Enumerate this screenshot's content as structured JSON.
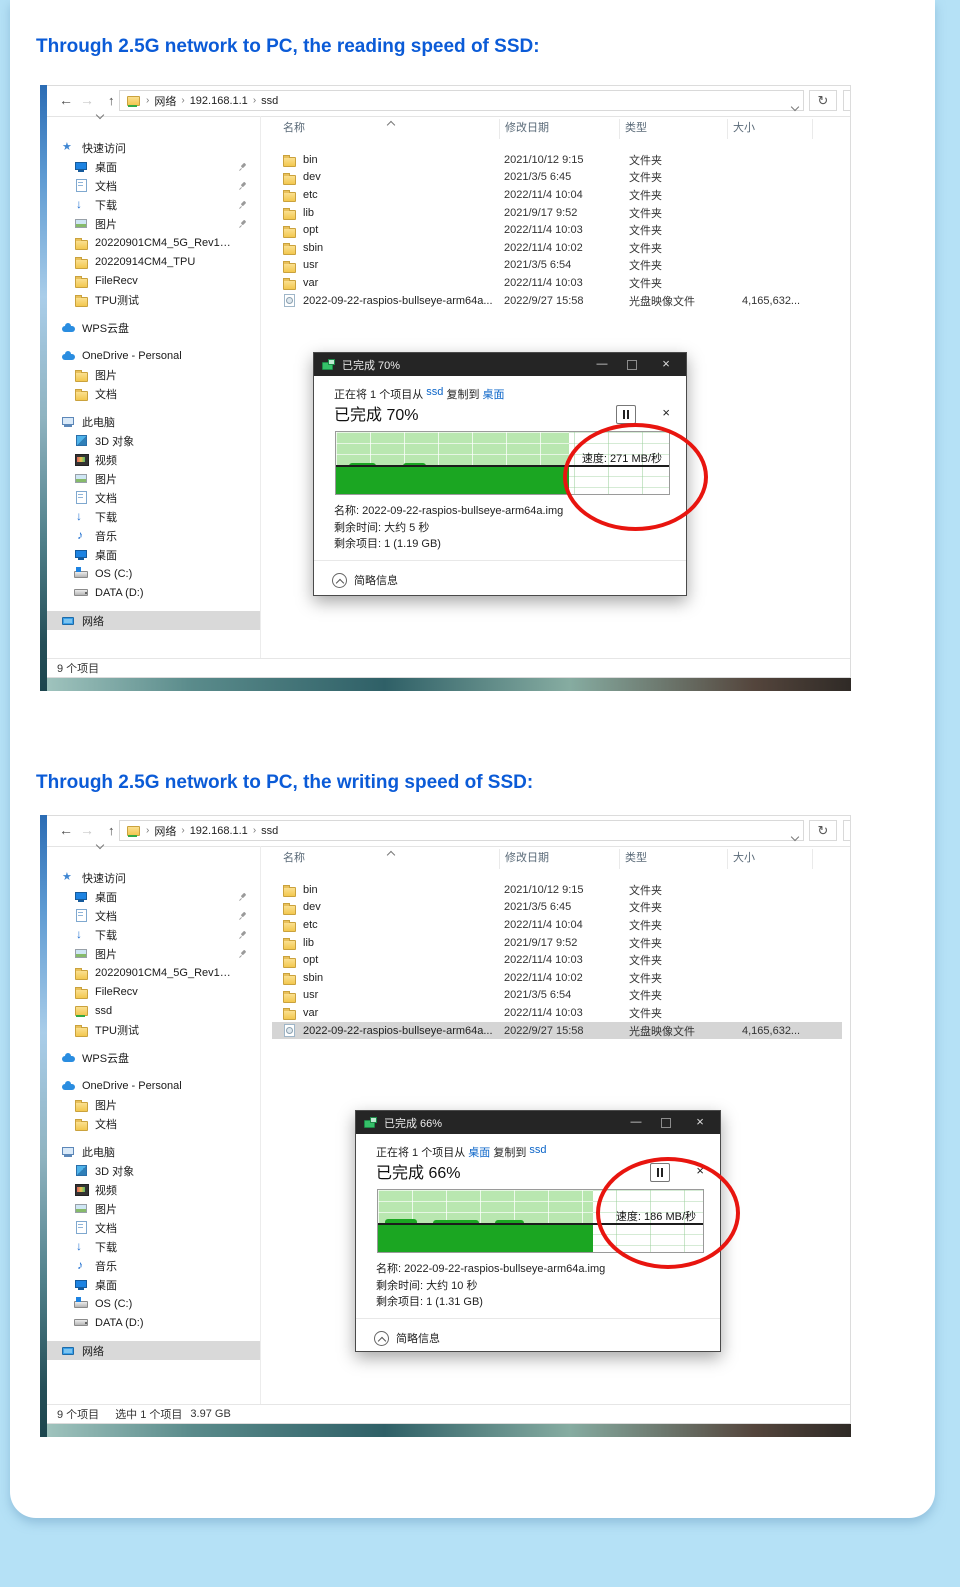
{
  "page": {
    "heading_reading": "Through 2.5G network to PC, the reading speed of SSD:",
    "heading_writing": "Through 2.5G network to PC, the writing speed of SSD:",
    "colors": {
      "background": "#b5e1f6",
      "heading": "#0b5bd7",
      "dialog_titlebar": "#252525",
      "chart_light_green": "#b9e7b0",
      "chart_dark_green": "#1ba622",
      "red_circle": "#e8150f",
      "link_blue": "#0a64c8",
      "selection_gray": "#d5d5d5"
    }
  },
  "explorer": {
    "nav": {
      "back": "←",
      "forward": "→",
      "up": "↑",
      "refresh": "↻"
    },
    "breadcrumbs": [
      {
        "sep": "›",
        "t": "网络"
      },
      {
        "sep": "›",
        "t": "192.168.1.1"
      },
      {
        "sep": "›",
        "t": "ssd"
      }
    ],
    "columns": {
      "name": "名称",
      "date": "修改日期",
      "type": "类型",
      "size": "大小"
    }
  },
  "shot1": {
    "sidebar": [
      {
        "label": "快速访问",
        "icon": "star",
        "cls": "i0"
      },
      {
        "label": "桌面",
        "icon": "desktop",
        "cls": "i1",
        "pin": true
      },
      {
        "label": "文档",
        "icon": "doc",
        "cls": "i1",
        "pin": true
      },
      {
        "label": "下载",
        "icon": "down",
        "cls": "i1",
        "pin": true
      },
      {
        "label": "图片",
        "icon": "pic",
        "cls": "i1",
        "pin": true
      },
      {
        "label": "20220901CM4_5G_Rev1.1a",
        "icon": "folder",
        "cls": "i1"
      },
      {
        "label": "20220914CM4_TPU",
        "icon": "folder",
        "cls": "i1"
      },
      {
        "label": "FileRecv",
        "icon": "folder",
        "cls": "i1"
      },
      {
        "label": "TPU测试",
        "icon": "folder",
        "cls": "i1"
      },
      {
        "label": "WPS云盘",
        "icon": "cloud",
        "cls": "i0 gap"
      },
      {
        "label": "OneDrive - Personal",
        "icon": "cloud",
        "cls": "i0 gap"
      },
      {
        "label": "图片",
        "icon": "folder",
        "cls": "i1"
      },
      {
        "label": "文档",
        "icon": "folder",
        "cls": "i1"
      },
      {
        "label": "此电脑",
        "icon": "pc",
        "cls": "i0 gap"
      },
      {
        "label": "3D 对象",
        "icon": "obj",
        "cls": "i1"
      },
      {
        "label": "视频",
        "icon": "vid",
        "cls": "i1"
      },
      {
        "label": "图片",
        "icon": "pic",
        "cls": "i1"
      },
      {
        "label": "文档",
        "icon": "doc",
        "cls": "i1"
      },
      {
        "label": "下载",
        "icon": "down",
        "cls": "i1"
      },
      {
        "label": "音乐",
        "icon": "music",
        "cls": "i1"
      },
      {
        "label": "桌面",
        "icon": "desktop",
        "cls": "i1"
      },
      {
        "label": "OS (C:)",
        "icon": "drvos",
        "cls": "i1"
      },
      {
        "label": "DATA (D:)",
        "icon": "drv",
        "cls": "i1"
      },
      {
        "label": "网络",
        "icon": "net",
        "cls": "i0 gap sel",
        "selected": true
      }
    ],
    "files": [
      {
        "icon": "folder",
        "name": "bin",
        "date": "2021/10/12 9:15",
        "type": "文件夹",
        "size": ""
      },
      {
        "icon": "folder",
        "name": "dev",
        "date": "2021/3/5 6:45",
        "type": "文件夹",
        "size": ""
      },
      {
        "icon": "folder",
        "name": "etc",
        "date": "2022/11/4 10:04",
        "type": "文件夹",
        "size": ""
      },
      {
        "icon": "folder",
        "name": "lib",
        "date": "2021/9/17 9:52",
        "type": "文件夹",
        "size": ""
      },
      {
        "icon": "folder",
        "name": "opt",
        "date": "2022/11/4 10:03",
        "type": "文件夹",
        "size": ""
      },
      {
        "icon": "folder",
        "name": "sbin",
        "date": "2022/11/4 10:02",
        "type": "文件夹",
        "size": ""
      },
      {
        "icon": "folder",
        "name": "usr",
        "date": "2021/3/5 6:54",
        "type": "文件夹",
        "size": ""
      },
      {
        "icon": "folder",
        "name": "var",
        "date": "2022/11/4 10:03",
        "type": "文件夹",
        "size": ""
      },
      {
        "icon": "disc",
        "name": "2022-09-22-raspios-bullseye-arm64a...",
        "date": "2022/9/27 15:58",
        "type": "光盘映像文件",
        "size": "4,165,632..."
      }
    ],
    "status_items": "9 个项目",
    "dialog": {
      "title": "已完成 70%",
      "copy_line": [
        {
          "t": "正在将 1 个项目从 "
        },
        {
          "t": "ssd",
          "link": true
        },
        {
          "t": " 复制到 "
        },
        {
          "t": "桌面",
          "link": true
        }
      ],
      "progress": "已完成 70%",
      "fill_pct": 70,
      "speed": "速度: 271 MB/秒",
      "file_line": "名称: 2022-09-22-raspios-bullseye-arm64a.img",
      "time_line": "剩余时间: 大约 5 秒",
      "items_line": "剩余项目: 1 (1.19 GB)",
      "footer": "简略信息"
    }
  },
  "shot2": {
    "sidebar": [
      {
        "label": "快速访问",
        "icon": "star",
        "cls": "i0"
      },
      {
        "label": "桌面",
        "icon": "desktop",
        "cls": "i1",
        "pin": true
      },
      {
        "label": "文档",
        "icon": "doc",
        "cls": "i1",
        "pin": true
      },
      {
        "label": "下载",
        "icon": "down",
        "cls": "i1",
        "pin": true
      },
      {
        "label": "图片",
        "icon": "pic",
        "cls": "i1",
        "pin": true
      },
      {
        "label": "20220901CM4_5G_Rev1.1a",
        "icon": "folder",
        "cls": "i1"
      },
      {
        "label": "FileRecv",
        "icon": "folder",
        "cls": "i1"
      },
      {
        "label": "ssd",
        "icon": "netfolder",
        "cls": "i1"
      },
      {
        "label": "TPU测试",
        "icon": "folder",
        "cls": "i1"
      },
      {
        "label": "WPS云盘",
        "icon": "cloud",
        "cls": "i0 gap"
      },
      {
        "label": "OneDrive - Personal",
        "icon": "cloud",
        "cls": "i0 gap"
      },
      {
        "label": "图片",
        "icon": "folder",
        "cls": "i1"
      },
      {
        "label": "文档",
        "icon": "folder",
        "cls": "i1"
      },
      {
        "label": "此电脑",
        "icon": "pc",
        "cls": "i0 gap"
      },
      {
        "label": "3D 对象",
        "icon": "obj",
        "cls": "i1"
      },
      {
        "label": "视频",
        "icon": "vid",
        "cls": "i1"
      },
      {
        "label": "图片",
        "icon": "pic",
        "cls": "i1"
      },
      {
        "label": "文档",
        "icon": "doc",
        "cls": "i1"
      },
      {
        "label": "下载",
        "icon": "down",
        "cls": "i1"
      },
      {
        "label": "音乐",
        "icon": "music",
        "cls": "i1"
      },
      {
        "label": "桌面",
        "icon": "desktop",
        "cls": "i1"
      },
      {
        "label": "OS (C:)",
        "icon": "drvos",
        "cls": "i1"
      },
      {
        "label": "DATA (D:)",
        "icon": "drv",
        "cls": "i1"
      },
      {
        "label": "网络",
        "icon": "net",
        "cls": "i0 gap sel",
        "selected": true
      }
    ],
    "files": [
      {
        "icon": "folder",
        "name": "bin",
        "date": "2021/10/12 9:15",
        "type": "文件夹",
        "size": ""
      },
      {
        "icon": "folder",
        "name": "dev",
        "date": "2021/3/5 6:45",
        "type": "文件夹",
        "size": ""
      },
      {
        "icon": "folder",
        "name": "etc",
        "date": "2022/11/4 10:04",
        "type": "文件夹",
        "size": ""
      },
      {
        "icon": "folder",
        "name": "lib",
        "date": "2021/9/17 9:52",
        "type": "文件夹",
        "size": ""
      },
      {
        "icon": "folder",
        "name": "opt",
        "date": "2022/11/4 10:03",
        "type": "文件夹",
        "size": ""
      },
      {
        "icon": "folder",
        "name": "sbin",
        "date": "2022/11/4 10:02",
        "type": "文件夹",
        "size": ""
      },
      {
        "icon": "folder",
        "name": "usr",
        "date": "2021/3/5 6:54",
        "type": "文件夹",
        "size": ""
      },
      {
        "icon": "folder",
        "name": "var",
        "date": "2022/11/4 10:03",
        "type": "文件夹",
        "size": ""
      },
      {
        "icon": "disc",
        "name": "2022-09-22-raspios-bullseye-arm64a...",
        "date": "2022/9/27 15:58",
        "type": "光盘映像文件",
        "size": "4,165,632...",
        "cls": "selected",
        "selected": true
      }
    ],
    "status_items": "9 个项目",
    "status_selected": "选中 1 个项目",
    "status_size": "3.97 GB",
    "dialog": {
      "title": "已完成 66%",
      "copy_line": [
        {
          "t": "正在将 1 个项目从 "
        },
        {
          "t": "桌面",
          "link": true
        },
        {
          "t": " 复制到 "
        },
        {
          "t": "ssd",
          "link": true
        }
      ],
      "progress": "已完成 66%",
      "fill_pct": 66,
      "speed": "速度: 186 MB/秒",
      "file_line": "名称: 2022-09-22-raspios-bullseye-arm64a.img",
      "time_line": "剩余时间: 大约 10 秒",
      "items_line": "剩余项目: 1 (1.31 GB)",
      "footer": "简略信息"
    }
  }
}
